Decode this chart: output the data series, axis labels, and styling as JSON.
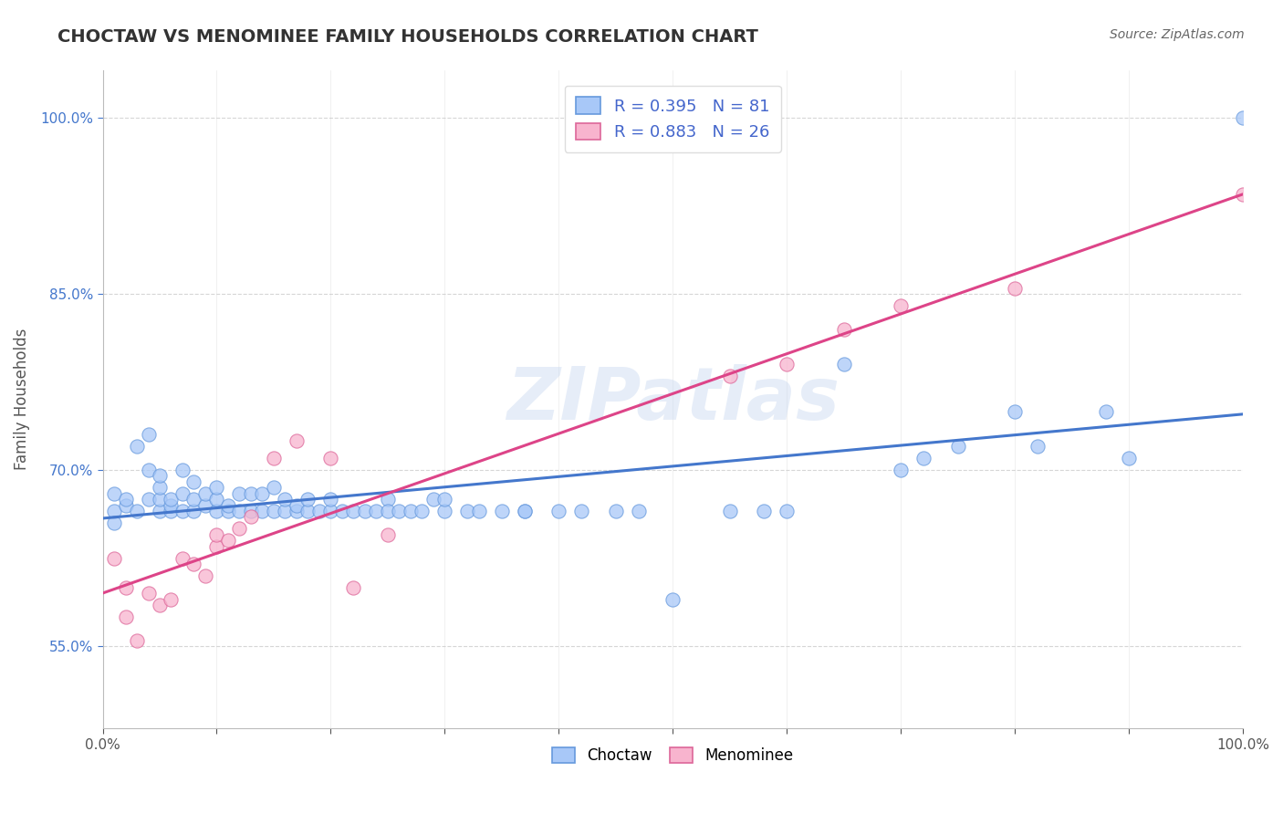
{
  "title": "CHOCTAW VS MENOMINEE FAMILY HOUSEHOLDS CORRELATION CHART",
  "source": "Source: ZipAtlas.com",
  "xlabel": "",
  "ylabel": "Family Households",
  "xlim": [
    0.0,
    1.0
  ],
  "ylim": [
    0.48,
    1.04
  ],
  "x_ticks": [
    0.0,
    0.1,
    0.2,
    0.3,
    0.4,
    0.5,
    0.6,
    0.7,
    0.8,
    0.9,
    1.0
  ],
  "y_ticks": [
    0.55,
    0.7,
    0.85,
    1.0
  ],
  "choctaw_R": 0.395,
  "choctaw_N": 81,
  "menominee_R": 0.883,
  "menominee_N": 26,
  "choctaw_color": "#a8c8f8",
  "menominee_color": "#f8b4ce",
  "choctaw_edge_color": "#6699dd",
  "menominee_edge_color": "#dd6699",
  "choctaw_line_color": "#4477cc",
  "menominee_line_color": "#dd4488",
  "choctaw_x": [
    0.01,
    0.01,
    0.01,
    0.02,
    0.02,
    0.03,
    0.03,
    0.04,
    0.04,
    0.04,
    0.05,
    0.05,
    0.05,
    0.05,
    0.06,
    0.06,
    0.06,
    0.07,
    0.07,
    0.07,
    0.08,
    0.08,
    0.08,
    0.09,
    0.09,
    0.1,
    0.1,
    0.1,
    0.11,
    0.11,
    0.12,
    0.12,
    0.13,
    0.13,
    0.14,
    0.14,
    0.15,
    0.15,
    0.16,
    0.16,
    0.17,
    0.17,
    0.18,
    0.18,
    0.19,
    0.2,
    0.2,
    0.21,
    0.22,
    0.23,
    0.24,
    0.25,
    0.25,
    0.26,
    0.27,
    0.28,
    0.29,
    0.3,
    0.3,
    0.32,
    0.33,
    0.35,
    0.37,
    0.37,
    0.4,
    0.42,
    0.45,
    0.47,
    0.5,
    0.55,
    0.58,
    0.6,
    0.65,
    0.7,
    0.72,
    0.75,
    0.8,
    0.82,
    0.88,
    0.9,
    1.0
  ],
  "choctaw_y": [
    0.665,
    0.655,
    0.68,
    0.67,
    0.675,
    0.665,
    0.72,
    0.675,
    0.7,
    0.73,
    0.665,
    0.675,
    0.685,
    0.695,
    0.665,
    0.67,
    0.675,
    0.665,
    0.68,
    0.7,
    0.665,
    0.675,
    0.69,
    0.67,
    0.68,
    0.665,
    0.675,
    0.685,
    0.665,
    0.67,
    0.665,
    0.68,
    0.665,
    0.68,
    0.665,
    0.68,
    0.665,
    0.685,
    0.665,
    0.675,
    0.665,
    0.67,
    0.665,
    0.675,
    0.665,
    0.665,
    0.675,
    0.665,
    0.665,
    0.665,
    0.665,
    0.675,
    0.665,
    0.665,
    0.665,
    0.665,
    0.675,
    0.665,
    0.675,
    0.665,
    0.665,
    0.665,
    0.665,
    0.665,
    0.665,
    0.665,
    0.665,
    0.665,
    0.59,
    0.665,
    0.665,
    0.665,
    0.79,
    0.7,
    0.71,
    0.72,
    0.75,
    0.72,
    0.75,
    0.71,
    1.0
  ],
  "menominee_x": [
    0.01,
    0.02,
    0.02,
    0.03,
    0.04,
    0.05,
    0.06,
    0.07,
    0.08,
    0.09,
    0.1,
    0.1,
    0.11,
    0.12,
    0.13,
    0.15,
    0.17,
    0.2,
    0.22,
    0.25,
    0.55,
    0.6,
    0.65,
    0.7,
    0.8,
    1.0
  ],
  "menominee_y": [
    0.625,
    0.6,
    0.575,
    0.555,
    0.595,
    0.585,
    0.59,
    0.625,
    0.62,
    0.61,
    0.635,
    0.645,
    0.64,
    0.65,
    0.66,
    0.71,
    0.725,
    0.71,
    0.6,
    0.645,
    0.78,
    0.79,
    0.82,
    0.84,
    0.855,
    0.935
  ],
  "watermark": "ZIPatlas",
  "grid_color": "#cccccc",
  "background_color": "#ffffff",
  "title_color": "#333333",
  "source_color": "#666666",
  "ylabel_color": "#555555",
  "ytick_color": "#4477cc",
  "xtick_color": "#555555"
}
